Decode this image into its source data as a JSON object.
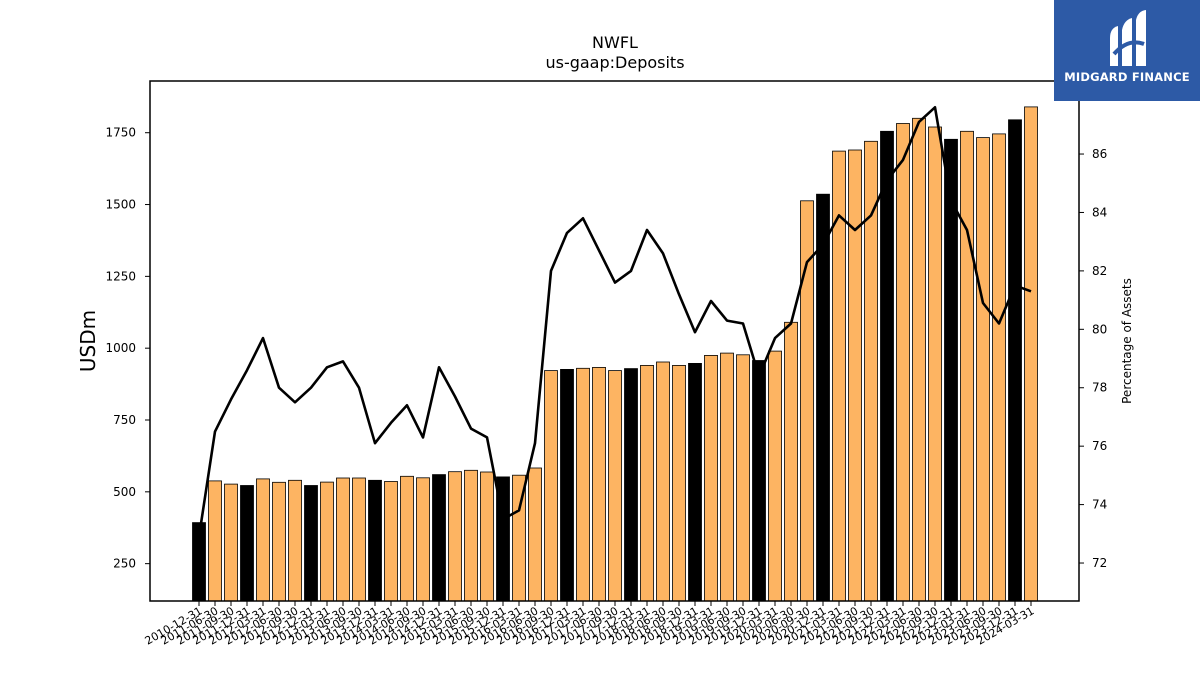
{
  "chart_data": {
    "type": "bar",
    "title": "NWFL",
    "subtitle": "us-gaap:Deposits",
    "ylabel": "USDm",
    "ylabel_right": "Percentage of Assets",
    "ylim": [
      120,
      1930
    ],
    "ylim_right": [
      70.7,
      88.5
    ],
    "yticks": [
      250,
      500,
      750,
      1000,
      1250,
      1500,
      1750
    ],
    "yticks_right": [
      72,
      74,
      76,
      78,
      80,
      82,
      84,
      86
    ],
    "categories": [
      "2010-12-31",
      "2011-06-30",
      "2011-09-30",
      "2011-12-31",
      "2012-03-31",
      "2012-06-30",
      "2012-09-30",
      "2012-12-31",
      "2013-03-31",
      "2013-06-30",
      "2013-09-30",
      "2013-12-31",
      "2014-03-31",
      "2014-06-30",
      "2014-09-30",
      "2014-12-31",
      "2015-03-31",
      "2015-06-30",
      "2015-09-30",
      "2015-12-31",
      "2016-03-31",
      "2016-06-30",
      "2016-09-30",
      "2016-12-31",
      "2017-03-31",
      "2017-06-30",
      "2017-09-30",
      "2017-12-31",
      "2018-03-31",
      "2018-06-30",
      "2018-09-30",
      "2018-12-31",
      "2019-03-31",
      "2019-06-30",
      "2019-09-30",
      "2019-12-31",
      "2020-03-31",
      "2020-06-30",
      "2020-09-30",
      "2020-12-31",
      "2021-03-31",
      "2021-06-30",
      "2021-09-30",
      "2021-12-31",
      "2022-03-31",
      "2022-06-30",
      "2022-09-30",
      "2022-12-31",
      "2023-03-31",
      "2023-06-30",
      "2023-09-30",
      "2023-12-31",
      "2024-03-31"
    ],
    "series": [
      {
        "type": "bar",
        "values": [
          393,
          538,
          527,
          522,
          545,
          533,
          540,
          522,
          534,
          548,
          548,
          540,
          536,
          554,
          549,
          560,
          570,
          575,
          569,
          552,
          558,
          583,
          922,
          926,
          930,
          933,
          922,
          929,
          940,
          952,
          940,
          947,
          975,
          983,
          977,
          957,
          990,
          1090,
          1513,
          1536,
          1686,
          1690,
          1720,
          1755,
          1782,
          1800,
          1770,
          1727,
          1755,
          1733,
          1746,
          1795,
          1840
        ],
        "bar_colors": [
          "#000000",
          "#fdb462",
          "#fdb462",
          "#000000",
          "#fdb462",
          "#fdb462",
          "#fdb462",
          "#000000",
          "#fdb462",
          "#fdb462",
          "#fdb462",
          "#000000",
          "#fdb462",
          "#fdb462",
          "#fdb462",
          "#000000",
          "#fdb462",
          "#fdb462",
          "#fdb462",
          "#000000",
          "#fdb462",
          "#fdb462",
          "#fdb462",
          "#000000",
          "#fdb462",
          "#fdb462",
          "#fdb462",
          "#000000",
          "#fdb462",
          "#fdb462",
          "#fdb462",
          "#000000",
          "#fdb462",
          "#fdb462",
          "#fdb462",
          "#000000",
          "#fdb462",
          "#fdb462",
          "#fdb462",
          "#000000",
          "#fdb462",
          "#fdb462",
          "#fdb462",
          "#000000",
          "#fdb462",
          "#fdb462",
          "#fdb462",
          "#000000",
          "#fdb462",
          "#fdb462",
          "#fdb462",
          "#000000",
          "#fdb462"
        ]
      },
      {
        "type": "line",
        "axis": "right",
        "color": "#000000",
        "values": [
          72.9,
          76.5,
          77.6,
          78.6,
          79.7,
          78.0,
          77.5,
          78.0,
          78.7,
          78.9,
          78.0,
          76.1,
          76.8,
          77.4,
          76.3,
          78.7,
          77.7,
          76.6,
          76.3,
          73.5,
          73.8,
          76.1,
          82.0,
          83.3,
          83.8,
          82.7,
          81.6,
          82.0,
          83.4,
          82.6,
          81.2,
          79.9,
          80.97,
          80.3,
          80.2,
          78.4,
          79.7,
          80.2,
          82.3,
          82.9,
          83.9,
          83.4,
          83.9,
          85.1,
          85.8,
          87.1,
          87.6,
          84.4,
          83.4,
          80.9,
          80.2,
          81.5,
          81.3
        ]
      }
    ],
    "colors": {
      "bar_orange": "#fdb462",
      "bar_black": "#000000",
      "line": "#000000"
    }
  },
  "logo": {
    "brand": "MIDGARD FINANCE",
    "background": "#2d5aa6"
  }
}
